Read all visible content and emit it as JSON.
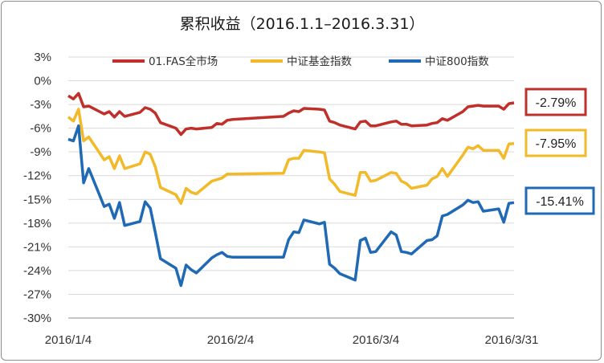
{
  "chart_data": {
    "type": "line",
    "title": "累积收益（2016.1.1–2016.3.31）",
    "xlabel": "",
    "ylabel": "",
    "ylim": [
      -30,
      3
    ],
    "yticks": [
      "3%",
      "0%",
      "-3%",
      "-6%",
      "-9%",
      "-12%",
      "-15%",
      "-18%",
      "-21%",
      "-24%",
      "-27%",
      "-30%"
    ],
    "x_ticks": [
      "2016/1/4",
      "2016/2/4",
      "2016/3/4",
      "2016/3/31"
    ],
    "grid": "horizontal",
    "legend_position": "top",
    "x": [
      "2016-01-04",
      "2016-01-05",
      "2016-01-06",
      "2016-01-07",
      "2016-01-08",
      "2016-01-11",
      "2016-01-12",
      "2016-01-13",
      "2016-01-14",
      "2016-01-15",
      "2016-01-18",
      "2016-01-19",
      "2016-01-20",
      "2016-01-21",
      "2016-01-22",
      "2016-01-25",
      "2016-01-26",
      "2016-01-27",
      "2016-01-28",
      "2016-01-29",
      "2016-02-01",
      "2016-02-02",
      "2016-02-03",
      "2016-02-04",
      "2016-02-05",
      "2016-02-15",
      "2016-02-16",
      "2016-02-17",
      "2016-02-18",
      "2016-02-19",
      "2016-02-22",
      "2016-02-23",
      "2016-02-24",
      "2016-02-25",
      "2016-02-26",
      "2016-02-29",
      "2016-03-01",
      "2016-03-02",
      "2016-03-03",
      "2016-03-04",
      "2016-03-07",
      "2016-03-08",
      "2016-03-09",
      "2016-03-10",
      "2016-03-11",
      "2016-03-14",
      "2016-03-15",
      "2016-03-16",
      "2016-03-17",
      "2016-03-18",
      "2016-03-21",
      "2016-03-22",
      "2016-03-23",
      "2016-03-24",
      "2016-03-25",
      "2016-03-28",
      "2016-03-29",
      "2016-03-30",
      "2016-03-31"
    ],
    "series": [
      {
        "name": "01.FAS全市场",
        "color": "#c0302a",
        "end_label": "-2.79%",
        "values": [
          -1.9,
          -2.3,
          -1.6,
          -3.3,
          -3.2,
          -4.2,
          -3.9,
          -4.6,
          -3.9,
          -4.5,
          -4.0,
          -3.4,
          -3.6,
          -4.1,
          -5.3,
          -6.0,
          -6.8,
          -6.1,
          -6.0,
          -6.1,
          -5.9,
          -5.4,
          -5.5,
          -5.0,
          -4.9,
          -4.5,
          -4.1,
          -3.8,
          -3.9,
          -3.5,
          -3.6,
          -3.7,
          -5.1,
          -5.3,
          -5.6,
          -6.1,
          -5.2,
          -5.1,
          -5.7,
          -5.7,
          -5.2,
          -5.1,
          -5.5,
          -5.5,
          -5.7,
          -5.6,
          -5.4,
          -5.3,
          -4.8,
          -5.0,
          -3.9,
          -3.3,
          -3.2,
          -3.1,
          -3.2,
          -3.2,
          -3.6,
          -2.9,
          -2.79
        ]
      },
      {
        "name": "中证基金指数",
        "color": "#f2b928",
        "end_label": "-7.95%",
        "values": [
          -4.6,
          -5.1,
          -3.6,
          -7.6,
          -7.1,
          -10.0,
          -9.6,
          -11.1,
          -9.5,
          -11.1,
          -10.5,
          -9.0,
          -9.3,
          -10.9,
          -13.5,
          -14.4,
          -15.5,
          -13.6,
          -14.1,
          -14.3,
          -12.7,
          -12.5,
          -12.3,
          -11.8,
          -11.8,
          -11.7,
          -10.0,
          -9.8,
          -9.8,
          -8.8,
          -9.0,
          -9.1,
          -12.4,
          -13.1,
          -14.0,
          -14.5,
          -11.6,
          -11.6,
          -12.7,
          -12.6,
          -11.6,
          -11.7,
          -12.7,
          -13.0,
          -13.6,
          -13.2,
          -12.4,
          -12.1,
          -11.1,
          -12.1,
          -9.4,
          -8.4,
          -8.6,
          -8.2,
          -8.8,
          -8.8,
          -9.8,
          -8.0,
          -7.95
        ]
      },
      {
        "name": "中证800指数",
        "color": "#1f69b5",
        "end_label": "-15.41%",
        "values": [
          -7.4,
          -7.6,
          -5.7,
          -12.9,
          -11.1,
          -15.9,
          -15.6,
          -17.4,
          -15.4,
          -18.3,
          -17.8,
          -15.3,
          -16.1,
          -19.2,
          -22.5,
          -23.7,
          -25.9,
          -23.3,
          -23.9,
          -24.3,
          -22.4,
          -22.0,
          -21.7,
          -22.2,
          -22.3,
          -22.3,
          -20.1,
          -19.1,
          -19.2,
          -17.6,
          -18.1,
          -17.9,
          -23.2,
          -23.7,
          -24.4,
          -25.2,
          -20.2,
          -19.9,
          -21.7,
          -21.6,
          -19.1,
          -19.5,
          -21.6,
          -21.7,
          -21.9,
          -20.2,
          -20.1,
          -19.6,
          -17.1,
          -16.9,
          -15.7,
          -15.1,
          -15.4,
          -15.3,
          -16.5,
          -16.2,
          -17.9,
          -15.5,
          -15.41
        ]
      }
    ]
  }
}
